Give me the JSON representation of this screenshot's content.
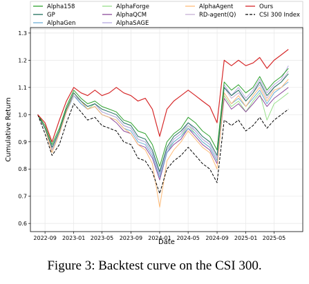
{
  "caption": "Figure 3: Backtest curve on the CSI 300.",
  "chart_data": {
    "type": "line",
    "xlabel": "Date",
    "ylabel": "Cumulative Return",
    "xlim": [
      "2022-07-01",
      "2025-08-31"
    ],
    "ylim": [
      0.57,
      1.32
    ],
    "xticks": [
      "2022-09",
      "2023-01",
      "2023-05",
      "2023-09",
      "2024-01",
      "2024-05",
      "2024-09",
      "2025-01",
      "2025-05"
    ],
    "yticks": [
      0.6,
      0.7,
      0.8,
      0.9,
      1.0,
      1.1,
      1.2,
      1.3
    ],
    "grid": true,
    "legend": "top, three columns",
    "x": [
      "2022-08-01",
      "2022-09-01",
      "2022-10-01",
      "2022-11-01",
      "2022-12-01",
      "2023-01-01",
      "2023-02-01",
      "2023-03-01",
      "2023-04-01",
      "2023-05-01",
      "2023-06-01",
      "2023-07-01",
      "2023-08-01",
      "2023-09-01",
      "2023-10-01",
      "2023-11-01",
      "2023-12-01",
      "2024-01-01",
      "2024-02-01",
      "2024-03-01",
      "2024-04-01",
      "2024-05-01",
      "2024-06-01",
      "2024-07-01",
      "2024-08-01",
      "2024-09-01",
      "2024-10-01",
      "2024-11-01",
      "2024-12-01",
      "2025-01-01",
      "2025-02-01",
      "2025-03-01",
      "2025-04-01",
      "2025-05-01",
      "2025-06-01",
      "2025-07-01"
    ],
    "series": [
      {
        "name": "Alpha158",
        "color": "#2ca02c",
        "values": [
          1.0,
          0.96,
          0.89,
          0.95,
          1.03,
          1.09,
          1.06,
          1.04,
          1.05,
          1.03,
          1.02,
          1.01,
          0.98,
          0.97,
          0.94,
          0.93,
          0.89,
          0.81,
          0.9,
          0.93,
          0.95,
          0.99,
          0.97,
          0.94,
          0.92,
          0.87,
          1.12,
          1.09,
          1.11,
          1.08,
          1.1,
          1.14,
          1.09,
          1.12,
          1.14,
          1.17
        ]
      },
      {
        "name": "AlphaForge",
        "color": "#98df8a",
        "values": [
          1.0,
          0.95,
          0.87,
          0.94,
          1.02,
          1.07,
          1.05,
          1.02,
          1.04,
          1.01,
          1.0,
          0.99,
          0.96,
          0.95,
          0.91,
          0.9,
          0.86,
          0.78,
          0.87,
          0.9,
          0.92,
          0.96,
          0.93,
          0.9,
          0.88,
          0.83,
          1.07,
          1.03,
          1.05,
          1.01,
          1.05,
          1.08,
          0.98,
          1.04,
          1.06,
          1.08
        ]
      },
      {
        "name": "AlphaAgent",
        "color": "#ffbb78",
        "values": [
          1.0,
          0.95,
          0.86,
          0.93,
          1.01,
          1.08,
          1.05,
          1.02,
          1.03,
          1.0,
          0.99,
          0.98,
          0.95,
          0.93,
          0.89,
          0.87,
          0.82,
          0.66,
          0.83,
          0.87,
          0.9,
          0.94,
          0.91,
          0.88,
          0.86,
          0.8,
          1.08,
          1.04,
          1.07,
          1.03,
          1.07,
          1.1,
          1.05,
          1.09,
          1.1,
          1.13
        ]
      },
      {
        "name": "Ours",
        "color": "#d62728",
        "values": [
          1.0,
          0.97,
          0.9,
          0.98,
          1.05,
          1.1,
          1.08,
          1.07,
          1.09,
          1.07,
          1.08,
          1.1,
          1.08,
          1.07,
          1.05,
          1.06,
          1.02,
          0.92,
          1.02,
          1.05,
          1.07,
          1.09,
          1.07,
          1.05,
          1.03,
          0.97,
          1.2,
          1.18,
          1.2,
          1.18,
          1.19,
          1.21,
          1.17,
          1.2,
          1.22,
          1.24
        ]
      },
      {
        "name": "GP",
        "color": "#1f6f5c",
        "values": [
          1.0,
          0.95,
          0.88,
          0.94,
          1.02,
          1.08,
          1.05,
          1.03,
          1.04,
          1.02,
          1.01,
          1.0,
          0.97,
          0.96,
          0.92,
          0.91,
          0.87,
          0.79,
          0.88,
          0.92,
          0.94,
          0.97,
          0.95,
          0.92,
          0.9,
          0.85,
          1.1,
          1.07,
          1.09,
          1.05,
          1.08,
          1.12,
          1.07,
          1.1,
          1.12,
          1.15
        ]
      },
      {
        "name": "AlphaQCM",
        "color": "#8c4b9c",
        "values": [
          1.0,
          0.95,
          0.87,
          0.93,
          1.01,
          1.07,
          1.04,
          1.02,
          1.03,
          1.0,
          0.99,
          0.97,
          0.94,
          0.93,
          0.89,
          0.88,
          0.84,
          0.76,
          0.86,
          0.89,
          0.91,
          0.95,
          0.92,
          0.89,
          0.87,
          0.82,
          1.06,
          1.02,
          1.04,
          1.01,
          1.04,
          1.07,
          1.03,
          1.06,
          1.08,
          1.1
        ]
      },
      {
        "name": "RD-agent(Q)",
        "color": "#c5b0d5",
        "values": [
          1.0,
          0.95,
          0.87,
          0.94,
          1.02,
          1.07,
          1.05,
          1.03,
          1.04,
          1.01,
          1.0,
          0.99,
          0.96,
          0.95,
          0.91,
          0.9,
          0.86,
          0.78,
          0.87,
          0.91,
          0.93,
          0.96,
          0.94,
          0.91,
          0.89,
          0.84,
          1.1,
          1.06,
          1.08,
          1.05,
          1.08,
          1.11,
          1.06,
          1.1,
          1.12,
          1.16
        ]
      },
      {
        "name": "CSI 300 Index",
        "color": "#000000",
        "dashed": true,
        "values": [
          1.0,
          0.93,
          0.85,
          0.89,
          0.97,
          1.04,
          1.01,
          0.98,
          0.99,
          0.96,
          0.95,
          0.94,
          0.9,
          0.89,
          0.84,
          0.83,
          0.79,
          0.71,
          0.8,
          0.83,
          0.85,
          0.88,
          0.85,
          0.82,
          0.8,
          0.75,
          0.98,
          0.96,
          0.98,
          0.94,
          0.96,
          0.99,
          0.95,
          0.98,
          1.0,
          1.02
        ]
      },
      {
        "name": "AlphaGen",
        "color": "#6baed6",
        "values": [
          1.0,
          0.95,
          0.87,
          0.93,
          1.01,
          1.07,
          1.04,
          1.02,
          1.03,
          1.0,
          0.99,
          0.98,
          0.95,
          0.94,
          0.9,
          0.89,
          0.85,
          0.77,
          0.86,
          0.9,
          0.92,
          0.95,
          0.93,
          0.9,
          0.88,
          0.83,
          1.08,
          1.04,
          1.06,
          1.03,
          1.06,
          1.09,
          1.04,
          1.08,
          1.1,
          1.12
        ]
      },
      {
        "name": "AlphaSAGE",
        "color": "#b4a7e0",
        "values": [
          1.0,
          0.95,
          0.88,
          0.94,
          1.02,
          1.08,
          1.05,
          1.03,
          1.04,
          1.01,
          1.0,
          0.99,
          0.96,
          0.95,
          0.91,
          0.9,
          0.86,
          0.78,
          0.87,
          0.91,
          0.93,
          0.97,
          0.94,
          0.91,
          0.89,
          0.84,
          1.11,
          1.07,
          1.1,
          1.06,
          1.09,
          1.13,
          1.08,
          1.11,
          1.13,
          1.18
        ]
      }
    ]
  }
}
